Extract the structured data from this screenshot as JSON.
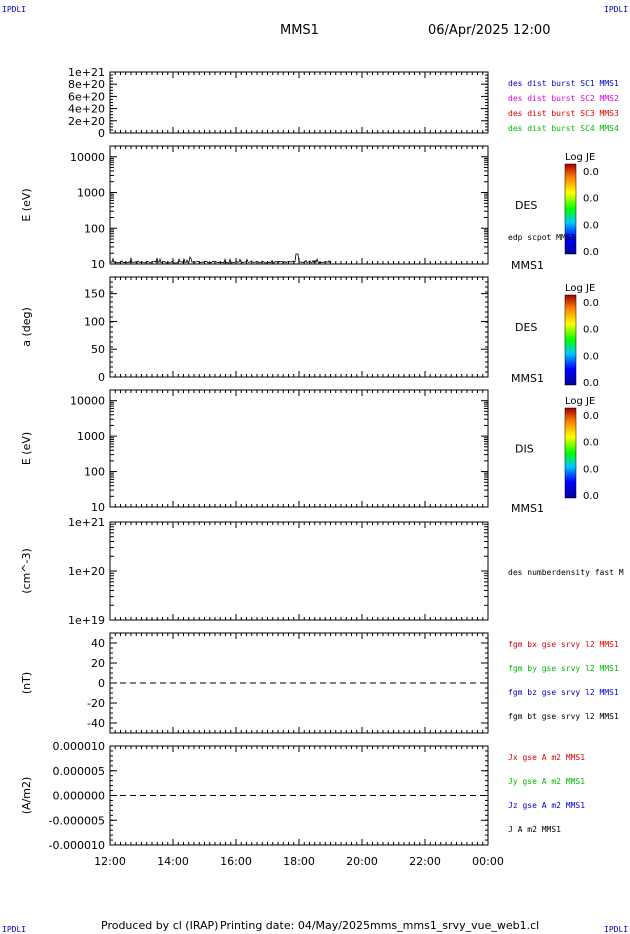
{
  "corner_label": "IPDLI",
  "header": {
    "spacecraft": "MMS1",
    "datetime": "06/Apr/2025 12:00"
  },
  "footer": {
    "producer": "Produced by cl (IRAP)",
    "printing": "Printing date: 04/May/2025",
    "file": "mms_mms1_srvy_vue_web1.cl"
  },
  "colors": {
    "blue": "#0000cc",
    "magenta": "#dd00dd",
    "red": "#dd0000",
    "green": "#00bb00",
    "black": "#000000"
  },
  "chart_data": [
    {
      "type": "line",
      "ylabel": "",
      "ylim": [
        0,
        1e+21
      ],
      "yticks": [
        "1e+21",
        "8e+20",
        "6e+20",
        "4e+20",
        "2e+20",
        "0"
      ],
      "legend": [
        {
          "label": "des dist burst SC1 MMS1",
          "color": "#0000cc"
        },
        {
          "label": "des dist burst SC2 MMS2",
          "color": "#dd00dd"
        },
        {
          "label": "des dist burst SC3 MMS3",
          "color": "#dd0000"
        },
        {
          "label": "des dist burst SC4 MMS4",
          "color": "#00bb00"
        }
      ],
      "zero_line": true
    },
    {
      "type": "heatmap",
      "ylabel": "E (eV)",
      "yscale": "log",
      "ylim": [
        10,
        20000
      ],
      "yticks": [
        "10000",
        "1000",
        "100",
        "10"
      ],
      "instrument": "DES",
      "spacecraft": "MMS1",
      "overlay_legend": "edp scpot MMS1",
      "colorbar": {
        "title": "Log JE",
        "ticks": [
          "0.0",
          "0.0",
          "0.0",
          "0.0"
        ]
      },
      "scpot_series": {
        "x_hours_start": 12.0,
        "x_hours_end": 19.0
      }
    },
    {
      "type": "heatmap",
      "ylabel": "a (deg)",
      "ylim": [
        0,
        180
      ],
      "yticks": [
        "150",
        "100",
        "50",
        "0"
      ],
      "instrument": "DES",
      "spacecraft": "MMS1",
      "colorbar": {
        "title": "Log JE",
        "ticks": [
          "0.0",
          "0.0",
          "0.0",
          "0.0"
        ]
      }
    },
    {
      "type": "heatmap",
      "ylabel": "E (eV)",
      "yscale": "log",
      "ylim": [
        10,
        20000
      ],
      "yticks": [
        "10000",
        "1000",
        "100",
        "10"
      ],
      "instrument": "DIS",
      "spacecraft": "MMS1",
      "colorbar": {
        "title": "Log JE",
        "ticks": [
          "0.0",
          "0.0",
          "0.0",
          "0.0"
        ]
      }
    },
    {
      "type": "line",
      "ylabel": "(cm^-3)",
      "yscale": "log",
      "ylim": [
        1e+19,
        1e+21
      ],
      "yticks": [
        "1e+21",
        "1e+20",
        "1e+19"
      ],
      "legend": [
        {
          "label": "des numberdensity fast M",
          "color": "#000000"
        }
      ]
    },
    {
      "type": "line",
      "ylabel": "(nT)",
      "ylim": [
        -50,
        50
      ],
      "yticks": [
        "40",
        "20",
        "0",
        "-20",
        "-40"
      ],
      "legend": [
        {
          "label": "fgm bx gse srvy l2 MMS1",
          "color": "#dd0000"
        },
        {
          "label": "fgm by gse srvy l2 MMS1",
          "color": "#00bb00"
        },
        {
          "label": "fgm bz gse srvy l2 MMS1",
          "color": "#0000cc"
        },
        {
          "label": "fgm bt gse srvy l2 MMS1",
          "color": "#000000"
        }
      ],
      "zero_line": true
    },
    {
      "type": "line",
      "ylabel": "(A/m2)",
      "ylim": [
        -1e-05,
        1e-05
      ],
      "yticks": [
        "0.000010",
        "0.000005",
        "0.000000",
        "-0.000005",
        "-0.000010"
      ],
      "legend": [
        {
          "label": "Jx gse A m2 MMS1",
          "color": "#dd0000"
        },
        {
          "label": "Jy gse A m2 MMS1",
          "color": "#00bb00"
        },
        {
          "label": "Jz gse A m2 MMS1",
          "color": "#0000cc"
        },
        {
          "label": "J A m2 MMS1",
          "color": "#000000"
        }
      ],
      "zero_line": true
    }
  ],
  "x_axis": {
    "ticks": [
      "12:00",
      "14:00",
      "16:00",
      "18:00",
      "20:00",
      "22:00",
      "00:00"
    ],
    "range_hours": [
      12,
      24
    ]
  }
}
